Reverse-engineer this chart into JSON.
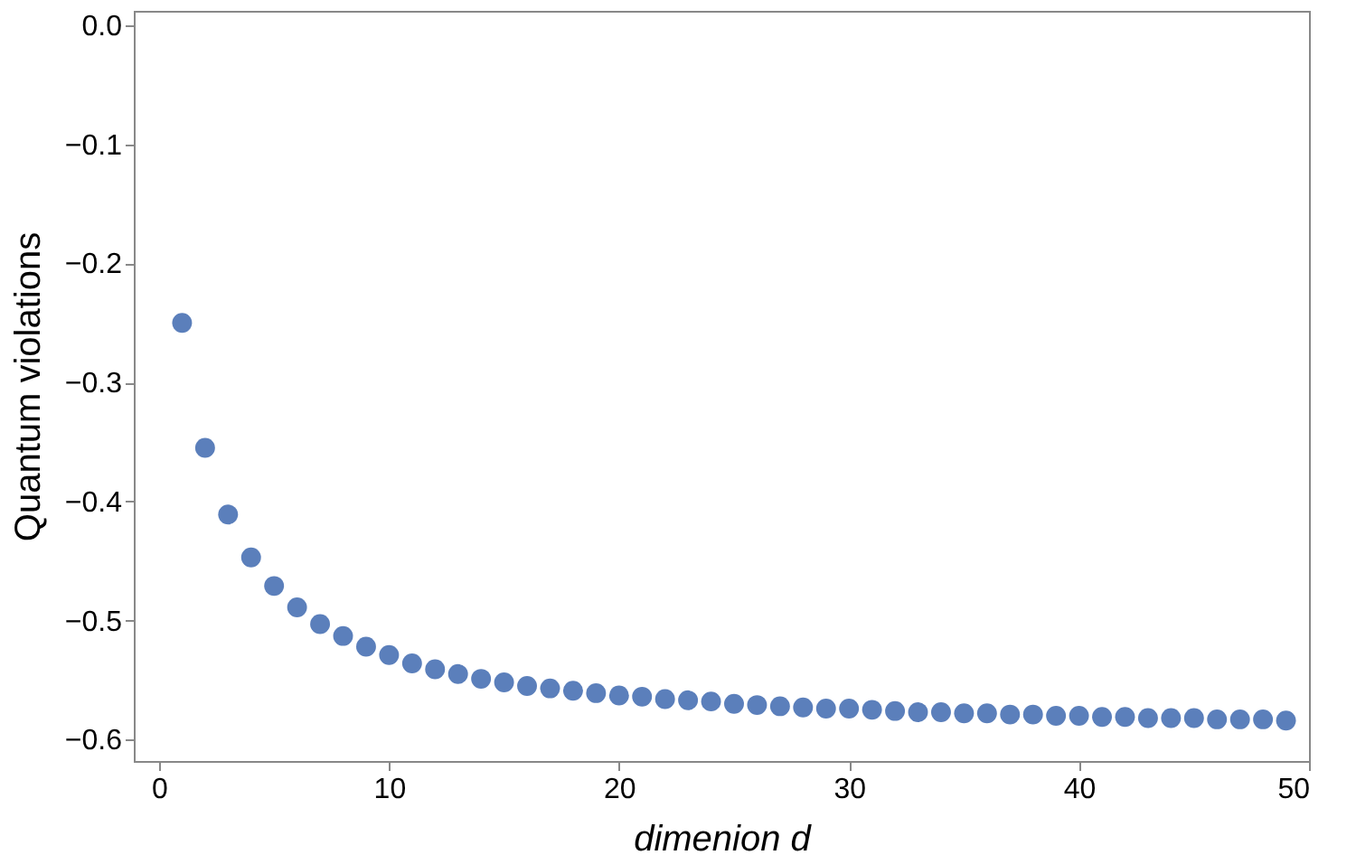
{
  "chart_data": {
    "type": "scatter",
    "xlabel": "dimenion d",
    "ylabel": "Quantum violations",
    "x": [
      1,
      2,
      3,
      4,
      5,
      6,
      7,
      8,
      9,
      10,
      11,
      12,
      13,
      14,
      15,
      16,
      17,
      18,
      19,
      20,
      21,
      22,
      23,
      24,
      25,
      26,
      27,
      28,
      29,
      30,
      31,
      32,
      33,
      34,
      35,
      36,
      37,
      38,
      39,
      40,
      41,
      42,
      43,
      44,
      45,
      46,
      47,
      48,
      49
    ],
    "series": [
      {
        "color": "#5b7fbb",
        "values": [
          -0.25,
          -0.355,
          -0.411,
          -0.447,
          -0.471,
          -0.489,
          -0.503,
          -0.513,
          -0.522,
          -0.529,
          -0.536,
          -0.541,
          -0.545,
          -0.549,
          -0.552,
          -0.555,
          -0.557,
          -0.559,
          -0.561,
          -0.563,
          -0.564,
          -0.566,
          -0.567,
          -0.568,
          -0.57,
          -0.571,
          -0.572,
          -0.573,
          -0.574,
          -0.574,
          -0.575,
          -0.576,
          -0.577,
          -0.577,
          -0.578,
          -0.578,
          -0.579,
          -0.579,
          -0.58,
          -0.58,
          -0.581,
          -0.581,
          -0.582,
          -0.582,
          -0.582,
          -0.583,
          -0.583,
          -0.583,
          -0.584
        ]
      }
    ],
    "xlim": [
      -1.1,
      50
    ],
    "ylim": [
      -0.618,
      0.012
    ],
    "xticks": [
      0,
      10,
      20,
      30,
      40,
      50
    ],
    "yticks": [
      {
        "value": 0,
        "label": "0.0"
      },
      {
        "value": -0.1,
        "label": "−0.1"
      },
      {
        "value": -0.2,
        "label": "−0.2"
      },
      {
        "value": -0.3,
        "label": "−0.3"
      },
      {
        "value": -0.4,
        "label": "−0.4"
      },
      {
        "value": -0.5,
        "label": "−0.5"
      },
      {
        "value": -0.6,
        "label": "−0.6"
      }
    ],
    "marker": "circle",
    "grid": false
  }
}
